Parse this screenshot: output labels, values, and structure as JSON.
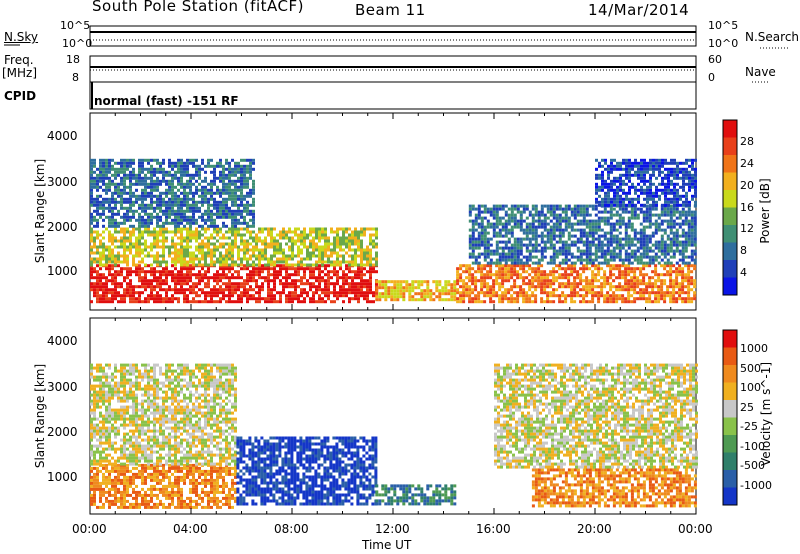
{
  "header": {
    "station": "South Pole Station (fitACF)",
    "beam": "Beam 11",
    "date": "14/Mar/2014"
  },
  "strip": {
    "nsky_label": "N.Sky",
    "nsky_hi": "10^5",
    "nsky_lo": "10^0",
    "nsearch_label": "N.Search",
    "nsearch_hi": "10^5",
    "nsearch_lo": "10^0",
    "freq_label": "Freq.",
    "freq_unit": "[MHz]",
    "freq_hi": "18",
    "freq_lo": "8",
    "nave_label": "Nave",
    "nave_hi": "60",
    "nave_lo": "0",
    "cpid_label": "CPID",
    "cpid_text": "normal (fast) -151 RF"
  },
  "x_axis": {
    "title": "Time UT",
    "ticks": [
      "00:00",
      "04:00",
      "08:00",
      "12:00",
      "16:00",
      "20:00",
      "00:00"
    ]
  },
  "power_panel": {
    "ylabel": "Slant Range [km]",
    "yticks": [
      "1000",
      "2000",
      "3000",
      "4000"
    ],
    "colorbar_label": "Power [dB]",
    "colorbar_ticks": [
      "4",
      "8",
      "12",
      "16",
      "20",
      "24",
      "28"
    ],
    "colors": [
      "#0a14e6",
      "#1f3fb8",
      "#2e6e9e",
      "#3f8f74",
      "#6aa84a",
      "#c9d91c",
      "#f2b01e",
      "#f07418",
      "#e8401a",
      "#e00e0e"
    ]
  },
  "velocity_panel": {
    "ylabel": "Slant Range [km]",
    "yticks": [
      "1000",
      "2000",
      "3000",
      "4000"
    ],
    "colorbar_label": "Velocity [m s^-1]",
    "colorbar_ticks": [
      "1000",
      "500",
      "100",
      "25",
      "-25",
      "-100",
      "-500",
      "-1000"
    ],
    "colors": [
      "#1436c8",
      "#2a5fa8",
      "#2f7f6a",
      "#4e9a52",
      "#89c24a",
      "#c8c8c8",
      "#f0b020",
      "#ef8a1e",
      "#e85a14",
      "#e00e0e"
    ]
  },
  "chart_data": {
    "type": "heatmap",
    "x_range_hours": [
      0,
      24
    ],
    "y_range_km": [
      200,
      4500
    ],
    "power_regions": [
      {
        "t0": 0.0,
        "t1": 11.3,
        "r0": 350,
        "r1": 1200,
        "level": 9
      },
      {
        "t0": 0.0,
        "t1": 11.3,
        "r0": 1200,
        "r1": 2000,
        "level": 5
      },
      {
        "t0": 0.0,
        "t1": 6.5,
        "r0": 2000,
        "r1": 3500,
        "level": 2
      },
      {
        "t0": 11.3,
        "t1": 14.5,
        "r0": 400,
        "r1": 850,
        "level": 6
      },
      {
        "t0": 14.5,
        "t1": 24.0,
        "r0": 400,
        "r1": 1200,
        "level": 7
      },
      {
        "t0": 15.0,
        "t1": 24.0,
        "r0": 1200,
        "r1": 2500,
        "level": 2
      },
      {
        "t0": 20.0,
        "t1": 24.0,
        "r0": 2500,
        "r1": 3500,
        "level": 1
      }
    ],
    "velocity_regions": [
      {
        "t0": 0.0,
        "t1": 5.8,
        "r0": 350,
        "r1": 1300,
        "level": 7
      },
      {
        "t0": 0.0,
        "t1": 5.8,
        "r0": 1300,
        "r1": 3500,
        "level": 5
      },
      {
        "t0": 5.8,
        "t1": 11.3,
        "r0": 450,
        "r1": 1900,
        "level": 0
      },
      {
        "t0": 11.3,
        "t1": 14.5,
        "r0": 400,
        "r1": 850,
        "level": 2
      },
      {
        "t0": 17.5,
        "t1": 24.0,
        "r0": 400,
        "r1": 1200,
        "level": 7
      },
      {
        "t0": 16.0,
        "t1": 24.0,
        "r0": 1200,
        "r1": 3500,
        "level": 5
      }
    ]
  }
}
